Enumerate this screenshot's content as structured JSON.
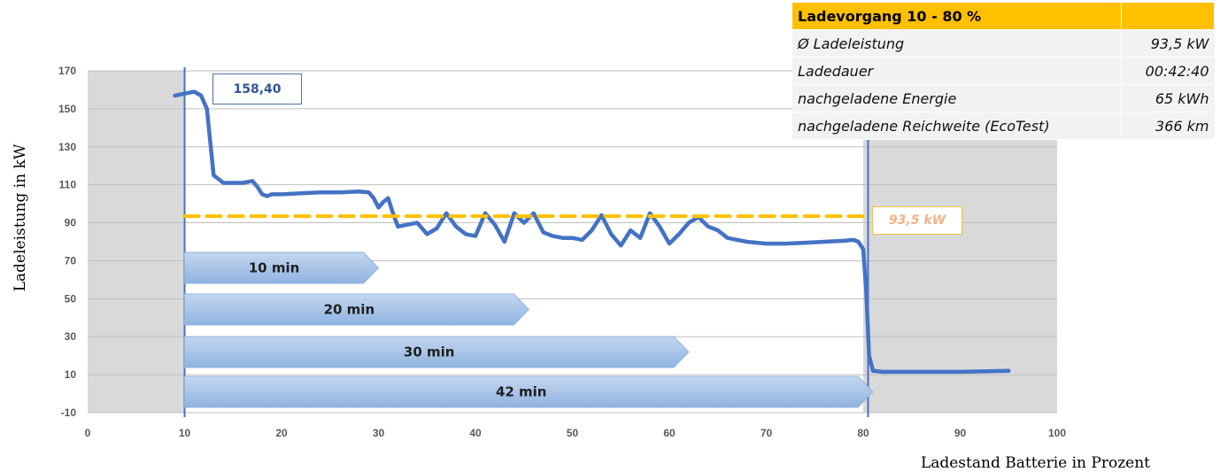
{
  "chart_data": {
    "type": "line",
    "xlabel": "Ladestand Batterie in Prozent",
    "ylabel": "Ladeleistung in kW",
    "xlim": [
      0,
      100
    ],
    "ylim": [
      -10,
      170
    ],
    "x_ticks": [
      "0",
      "10",
      "20",
      "30",
      "40",
      "50",
      "60",
      "70",
      "80",
      "90",
      "100"
    ],
    "y_ticks": [
      "170",
      "150",
      "130",
      "110",
      "90",
      "70",
      "50",
      "30",
      "10",
      "-10"
    ],
    "grid": "horizontal",
    "shaded_regions": [
      [
        0,
        10
      ],
      [
        80,
        100
      ]
    ],
    "vertical_markers": [
      10,
      80.5
    ],
    "series": [
      {
        "color": "#4472c4",
        "x": [
          9,
          10,
          11,
          11.7,
          12.3,
          13,
          14,
          15,
          16,
          17,
          17.5,
          18,
          18.5,
          19,
          20,
          22,
          24,
          26,
          28,
          29,
          29.5,
          30,
          30.5,
          31,
          31.5,
          32,
          33,
          34,
          35,
          36,
          37,
          38,
          39,
          40,
          41,
          42,
          43,
          44,
          45,
          46,
          47,
          48,
          49,
          50,
          51,
          52,
          53,
          54,
          55,
          56,
          57,
          58,
          59,
          60,
          61,
          62,
          63,
          64,
          65,
          66,
          67,
          68,
          70,
          72,
          74,
          76,
          78,
          79,
          79.5,
          80,
          80.3,
          80.6,
          81,
          82,
          85,
          90,
          95
        ],
        "values": [
          157,
          158,
          159,
          157,
          150,
          115,
          111,
          111,
          111,
          112,
          109,
          105,
          104,
          105,
          105,
          105.5,
          106,
          106,
          106.5,
          106,
          103,
          98,
          101,
          103,
          95,
          88,
          89,
          90,
          84,
          87,
          95,
          88,
          84,
          83,
          95,
          89,
          80,
          95,
          90,
          95,
          85,
          83,
          82,
          82,
          81,
          86,
          94,
          84,
          78,
          86,
          82,
          95,
          88,
          79,
          84,
          90,
          93,
          88,
          86,
          82,
          81,
          80,
          79,
          79,
          79.5,
          80,
          80.5,
          81,
          80,
          76,
          55,
          20,
          12,
          11.5,
          11.5,
          11.5,
          12
        ]
      },
      {
        "color": "#ffc000",
        "style": "dashed",
        "x": [
          10,
          80
        ],
        "values": [
          93.5,
          93.5
        ]
      }
    ],
    "annotations": [
      {
        "text": "158,40",
        "x": 11,
        "y": 158.4
      },
      {
        "text": "93,5 kW",
        "x": 80,
        "y": 93.5
      }
    ],
    "duration_arrows": [
      {
        "label": "10 min",
        "start": 10,
        "end": 30
      },
      {
        "label": "20 min",
        "start": 10,
        "end": 45.5
      },
      {
        "label": "30 min",
        "start": 10,
        "end": 62
      },
      {
        "label": "42 min",
        "start": 10,
        "end": 81
      }
    ],
    "colors": {
      "line": "#4472c4",
      "average": "#ffc000",
      "shade": "#d9d9d9",
      "arrow": "#a5c2e6"
    }
  },
  "summary": {
    "title": "Ladevorgang 10 - 80 %",
    "rows": [
      {
        "label": "Ø Ladeleistung",
        "value": "93,5 kW"
      },
      {
        "label": "Ladedauer",
        "value": "00:42:40"
      },
      {
        "label": "nachgeladene Energie",
        "value": "65 kWh"
      },
      {
        "label": "nachgeladene Reichweite (EcoTest)",
        "value": "366 km"
      }
    ]
  }
}
